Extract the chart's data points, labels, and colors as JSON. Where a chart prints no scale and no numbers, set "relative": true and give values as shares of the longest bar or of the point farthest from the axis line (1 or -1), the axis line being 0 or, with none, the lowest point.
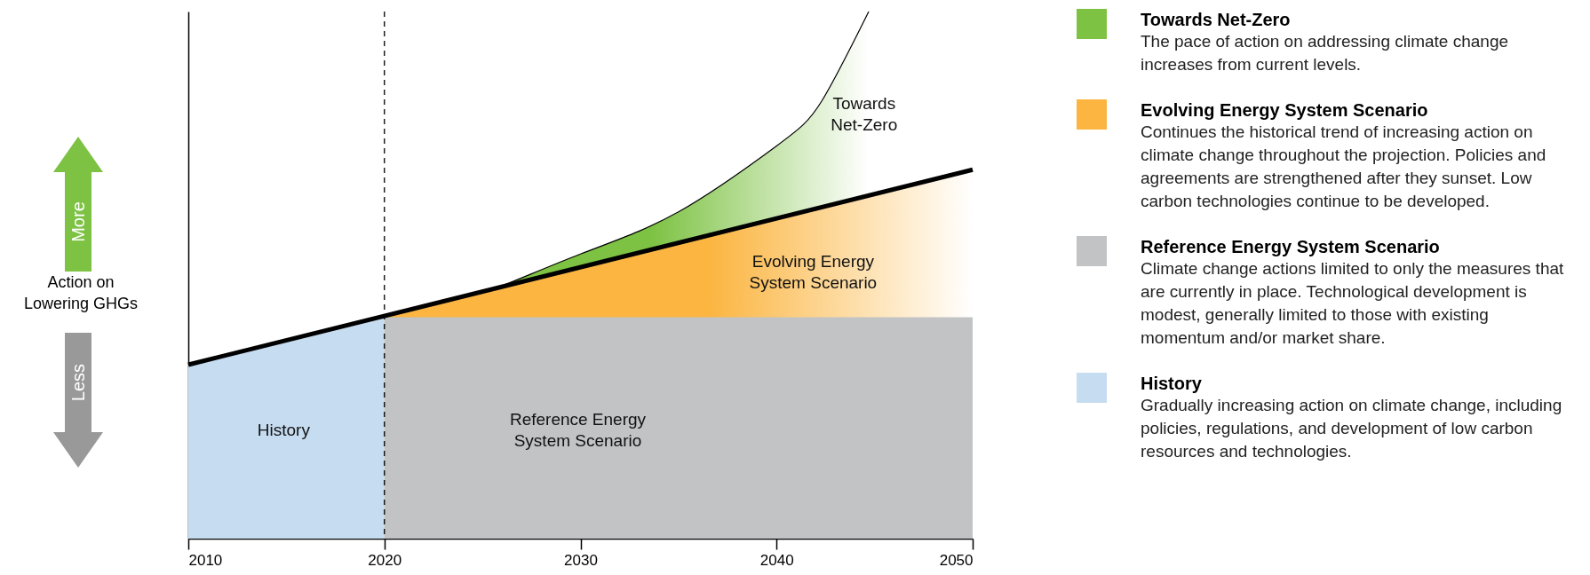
{
  "chart_data": {
    "type": "area",
    "relative": true,
    "ylabel": "Action on Lowering GHGs",
    "xlim": [
      2010,
      2050
    ],
    "xticks": [
      2010,
      2020,
      2030,
      2040,
      2050
    ],
    "legend": "right",
    "grid": false,
    "series": [
      {
        "name": "Towards Net-Zero",
        "color": "#7dc243",
        "x": [
          2020,
          2022.5,
          2025,
          2030,
          2035,
          2040,
          2042.3,
          2044.7
        ],
        "values": [
          0.42,
          0.44,
          0.465,
          0.54,
          0.62,
          0.745,
          0.83,
          1
        ]
      },
      {
        "name": "Evolving Energy System Scenario",
        "color": "#fbb540",
        "x": [
          2020,
          2050
        ],
        "values": [
          0.42,
          0.7
        ]
      },
      {
        "name": "Reference Energy System Scenario",
        "color": "#c2c3c5",
        "x": [
          2020,
          2050
        ],
        "values": [
          0.42,
          0.42
        ]
      },
      {
        "name": "History",
        "color": "#c6dcf0",
        "x": [
          2010,
          2020
        ],
        "values": [
          0.33,
          0.42
        ]
      },
      {
        "type": "line",
        "color": "#000000",
        "x": [
          2010,
          2050
        ],
        "values": [
          0.33,
          0.7
        ]
      }
    ],
    "ref_lines": [
      {
        "axis": "x",
        "value": 2020,
        "color": "#000000",
        "line_style": "dashed"
      }
    ],
    "annotations": [
      "The pace of action on addressing climate change increases from current levels.",
      "Continues the historical trend of increasing action on climate change throughout the projection. Policies and agreements are strengthened after they sunset. Low carbon technologies continue to be developed.",
      "Climate change actions limited to only the measures that are currently in place. Technological development is modest, generally limited to those with existing momentum and/or market share.",
      "Gradually increasing action on climate change, including policies, regulations, and development of low carbon resources and technologies.",
      "More",
      "Less",
      "Towards Net-Zero",
      "Evolving Energy System Scenario",
      "Reference Energy System Scenario",
      "History"
    ]
  }
}
